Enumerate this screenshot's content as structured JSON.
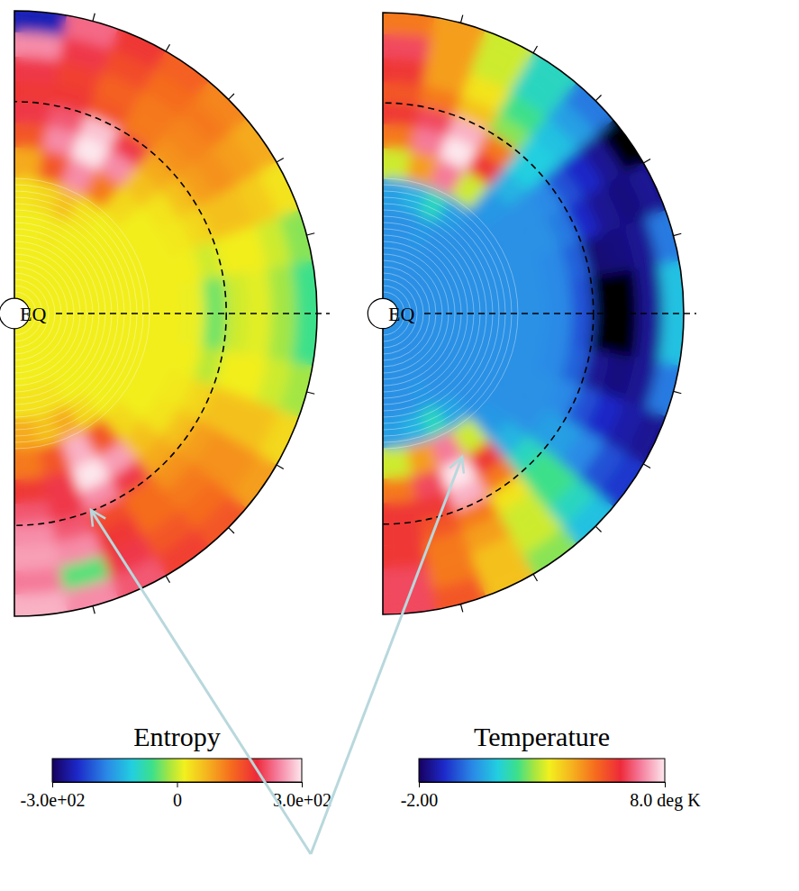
{
  "chart_data": [
    {
      "type": "polar_heatmap",
      "annotations": [
        "EQ"
      ],
      "reference_radius": 0.7,
      "colorbar": {
        "title": "Entropy",
        "range": [
          -300,
          300
        ],
        "ticks": [
          {
            "value": -300,
            "label": "-3.0e+02"
          },
          0,
          {
            "value": 300,
            "label": "3.0e+02"
          }
        ]
      },
      "r": [
        0.05,
        0.15,
        0.25,
        0.35,
        0.45,
        0.55,
        0.63,
        0.7,
        0.77,
        0.85,
        0.93,
        1.0
      ],
      "lat": [
        90,
        80,
        70,
        60,
        50,
        40,
        30,
        20,
        10,
        0,
        -10,
        -20,
        -30,
        -40,
        -50,
        -60,
        -70,
        -80,
        -90
      ],
      "cells": [
        [
          20,
          20,
          20,
          30,
          80,
          150,
          200,
          180,
          200,
          250,
          -250
        ],
        [
          20,
          20,
          20,
          40,
          150,
          250,
          220,
          180,
          170,
          200,
          230
        ],
        [
          20,
          20,
          25,
          60,
          250,
          300,
          280,
          150,
          140,
          160,
          180
        ],
        [
          20,
          20,
          20,
          30,
          120,
          250,
          200,
          120,
          120,
          130,
          140
        ],
        [
          20,
          20,
          20,
          20,
          40,
          60,
          80,
          100,
          110,
          120,
          110
        ],
        [
          20,
          20,
          20,
          20,
          20,
          30,
          60,
          90,
          100,
          90,
          80
        ],
        [
          20,
          20,
          20,
          20,
          20,
          25,
          40,
          60,
          60,
          50,
          30
        ],
        [
          20,
          20,
          20,
          20,
          20,
          20,
          0,
          20,
          20,
          0,
          -30
        ],
        [
          20,
          20,
          20,
          20,
          20,
          15,
          -40,
          0,
          10,
          -20,
          -60
        ],
        [
          20,
          20,
          20,
          20,
          20,
          15,
          -40,
          0,
          10,
          -20,
          -60
        ],
        [
          20,
          20,
          20,
          20,
          20,
          20,
          -10,
          20,
          20,
          0,
          -20
        ],
        [
          20,
          20,
          20,
          20,
          20,
          25,
          40,
          60,
          60,
          60,
          40
        ],
        [
          20,
          20,
          20,
          20,
          20,
          30,
          60,
          90,
          100,
          100,
          90
        ],
        [
          20,
          20,
          20,
          20,
          40,
          60,
          80,
          100,
          120,
          130,
          150
        ],
        [
          20,
          20,
          20,
          40,
          150,
          260,
          200,
          130,
          130,
          150,
          170
        ],
        [
          20,
          20,
          30,
          80,
          270,
          300,
          250,
          160,
          180,
          200,
          220
        ],
        [
          20,
          20,
          30,
          60,
          150,
          200,
          200,
          220,
          250,
          -50,
          250
        ],
        [
          20,
          20,
          30,
          80,
          120,
          180,
          220,
          250,
          260,
          240,
          270
        ]
      ]
    },
    {
      "type": "polar_heatmap",
      "annotations": [
        "EQ"
      ],
      "reference_radius": 0.7,
      "colorbar": {
        "title": "Temperature",
        "range": [
          -2,
          8
        ],
        "ticks": [
          {
            "value": -2,
            "label": "-2.00"
          },
          {
            "value": 8,
            "label": "8.0 deg K"
          }
        ]
      },
      "r": [
        0.05,
        0.15,
        0.25,
        0.35,
        0.45,
        0.55,
        0.63,
        0.7,
        0.77,
        0.85,
        0.93,
        1.0
      ],
      "lat": [
        90,
        80,
        70,
        60,
        50,
        40,
        30,
        20,
        10,
        0,
        -10,
        -20,
        -30,
        -40,
        -50,
        -60,
        -70,
        -80,
        -90
      ],
      "cells": [
        [
          0.3,
          0.3,
          0.3,
          0.5,
          3,
          5,
          6,
          5.5,
          6,
          6.5,
          5
        ],
        [
          0.3,
          0.3,
          0.3,
          0.8,
          4.5,
          7,
          6.5,
          5,
          4.5,
          4.5,
          4.5
        ],
        [
          0.3,
          0.3,
          0.4,
          1.5,
          7,
          8,
          7.5,
          4,
          3.5,
          3,
          3
        ],
        [
          0.3,
          0.3,
          0.3,
          0.5,
          3,
          6,
          5,
          2.5,
          2,
          1.5,
          1.5
        ],
        [
          0.3,
          0.3,
          0.3,
          0.3,
          0.4,
          0.8,
          1.2,
          1.2,
          1,
          0.5,
          0
        ],
        [
          0.3,
          0.3,
          0.3,
          0.3,
          0.3,
          0.3,
          0.2,
          -0.5,
          -1,
          -1.5,
          -2.5
        ],
        [
          0.3,
          0.3,
          0.3,
          0.3,
          0.3,
          0.3,
          0,
          -1,
          -1.5,
          -1.7,
          -1.5
        ],
        [
          0.3,
          0.3,
          0.3,
          0.3,
          0.3,
          0.2,
          -0.3,
          -1.8,
          -1.7,
          -1.5,
          0
        ],
        [
          0.3,
          0.3,
          0.3,
          0.3,
          0.3,
          0.2,
          -0.5,
          -2.5,
          -2.5,
          -1.5,
          1
        ],
        [
          0.3,
          0.3,
          0.3,
          0.3,
          0.3,
          0.2,
          -0.5,
          -2.5,
          -2.5,
          -1.5,
          1
        ],
        [
          0.3,
          0.3,
          0.3,
          0.3,
          0.3,
          0.2,
          -0.3,
          -1.5,
          -1.7,
          -1.5,
          0
        ],
        [
          0.3,
          0.3,
          0.3,
          0.3,
          0.3,
          0.3,
          0.2,
          -0.5,
          -1,
          -1.3,
          -1.5
        ],
        [
          0.3,
          0.3,
          0.3,
          0.3,
          0.3,
          0.3,
          0.5,
          0.5,
          0.2,
          -0.5,
          -0.8
        ],
        [
          0.3,
          0.3,
          0.3,
          0.3,
          0.4,
          0.8,
          1.5,
          2,
          2,
          1.5,
          1
        ],
        [
          0.3,
          0.3,
          0.3,
          0.6,
          3,
          6,
          5,
          3.5,
          3,
          3,
          2.5
        ],
        [
          0.3,
          0.3,
          0.4,
          1.5,
          7,
          8,
          7.5,
          5,
          4.5,
          4,
          4
        ],
        [
          0.3,
          0.3,
          0.3,
          0.8,
          4.5,
          6.5,
          6,
          5.5,
          5,
          5,
          5.5
        ],
        [
          0.3,
          0.3,
          0.3,
          0.5,
          3,
          5,
          6,
          6,
          6,
          6.5,
          6.5
        ]
      ]
    }
  ]
}
